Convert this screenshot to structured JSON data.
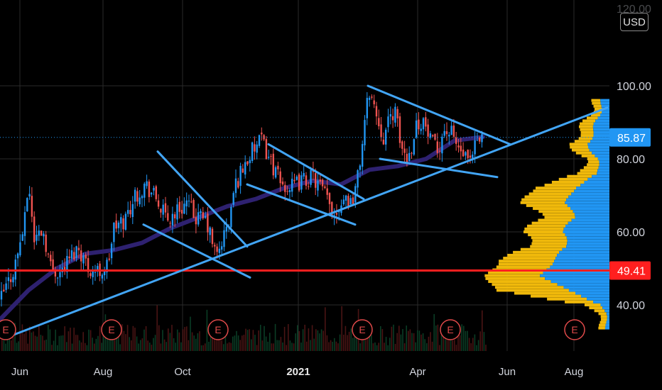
{
  "chart_data": {
    "type": "candlestick",
    "currency_label": "USD",
    "y_axis": {
      "ticks": [
        40,
        60,
        80,
        100
      ],
      "top_tick_partial": "120.00",
      "ylim": [
        31,
        122
      ]
    },
    "x_axis": {
      "ticks": [
        {
          "label": "Jun",
          "bold": false
        },
        {
          "label": "Aug",
          "bold": false
        },
        {
          "label": "Oct",
          "bold": false
        },
        {
          "label": "2021",
          "bold": true
        },
        {
          "label": "Apr",
          "bold": false
        },
        {
          "label": "Jun",
          "bold": false
        },
        {
          "label": "Aug",
          "bold": false
        }
      ]
    },
    "price": [
      {
        "x": 0,
        "y": 41
      },
      {
        "x": 20,
        "y": 50
      },
      {
        "x": 35,
        "y": 63
      },
      {
        "x": 40,
        "y": 74
      },
      {
        "x": 48,
        "y": 58
      },
      {
        "x": 60,
        "y": 61
      },
      {
        "x": 72,
        "y": 50
      },
      {
        "x": 85,
        "y": 49
      },
      {
        "x": 95,
        "y": 52
      },
      {
        "x": 110,
        "y": 56
      },
      {
        "x": 125,
        "y": 50
      },
      {
        "x": 140,
        "y": 49
      },
      {
        "x": 152,
        "y": 51
      },
      {
        "x": 160,
        "y": 61
      },
      {
        "x": 175,
        "y": 63
      },
      {
        "x": 190,
        "y": 70
      },
      {
        "x": 205,
        "y": 73
      },
      {
        "x": 220,
        "y": 69
      },
      {
        "x": 235,
        "y": 63
      },
      {
        "x": 250,
        "y": 66
      },
      {
        "x": 262,
        "y": 68
      },
      {
        "x": 275,
        "y": 64
      },
      {
        "x": 290,
        "y": 63
      },
      {
        "x": 305,
        "y": 53
      },
      {
        "x": 315,
        "y": 59
      },
      {
        "x": 322,
        "y": 62
      },
      {
        "x": 330,
        "y": 72
      },
      {
        "x": 340,
        "y": 77
      },
      {
        "x": 355,
        "y": 82
      },
      {
        "x": 368,
        "y": 85
      },
      {
        "x": 380,
        "y": 80
      },
      {
        "x": 395,
        "y": 73
      },
      {
        "x": 410,
        "y": 72
      },
      {
        "x": 425,
        "y": 74
      },
      {
        "x": 440,
        "y": 75
      },
      {
        "x": 455,
        "y": 71
      },
      {
        "x": 470,
        "y": 65
      },
      {
        "x": 485,
        "y": 70
      },
      {
        "x": 495,
        "y": 68
      },
      {
        "x": 505,
        "y": 76
      },
      {
        "x": 512,
        "y": 88
      },
      {
        "x": 520,
        "y": 99
      },
      {
        "x": 530,
        "y": 92
      },
      {
        "x": 540,
        "y": 86
      },
      {
        "x": 555,
        "y": 94
      },
      {
        "x": 565,
        "y": 83
      },
      {
        "x": 575,
        "y": 80
      },
      {
        "x": 585,
        "y": 89
      },
      {
        "x": 595,
        "y": 91
      },
      {
        "x": 605,
        "y": 85
      },
      {
        "x": 615,
        "y": 82
      },
      {
        "x": 625,
        "y": 88
      },
      {
        "x": 635,
        "y": 87
      },
      {
        "x": 645,
        "y": 83
      },
      {
        "x": 655,
        "y": 80
      },
      {
        "x": 662,
        "y": 78
      },
      {
        "x": 670,
        "y": 84
      },
      {
        "x": 680,
        "y": 85.87
      }
    ],
    "moving_average": [
      {
        "x": 0,
        "y": 36
      },
      {
        "x": 40,
        "y": 44
      },
      {
        "x": 80,
        "y": 50
      },
      {
        "x": 120,
        "y": 54
      },
      {
        "x": 160,
        "y": 55
      },
      {
        "x": 200,
        "y": 57
      },
      {
        "x": 240,
        "y": 61
      },
      {
        "x": 280,
        "y": 64
      },
      {
        "x": 320,
        "y": 67
      },
      {
        "x": 360,
        "y": 69
      },
      {
        "x": 400,
        "y": 72
      },
      {
        "x": 440,
        "y": 74
      },
      {
        "x": 480,
        "y": 73
      },
      {
        "x": 520,
        "y": 77
      },
      {
        "x": 560,
        "y": 78
      },
      {
        "x": 600,
        "y": 80
      },
      {
        "x": 640,
        "y": 85
      },
      {
        "x": 680,
        "y": 86
      }
    ],
    "horizontal_line": {
      "value": 49.41,
      "label": "49.41",
      "color": "#ff1f1f"
    },
    "last_price": {
      "value": 85.87,
      "label": "85.87",
      "color": "#2196f3"
    },
    "trendlines": [
      {
        "from": {
          "x": 15,
          "y": 31.5
        },
        "to": {
          "x": 855,
          "y": 94
        }
      },
      {
        "from": {
          "x": 222,
          "y": 82
        },
        "to": {
          "x": 348,
          "y": 56
        }
      },
      {
        "from": {
          "x": 202,
          "y": 62
        },
        "to": {
          "x": 352,
          "y": 47.5
        }
      },
      {
        "from": {
          "x": 378,
          "y": 84
        },
        "to": {
          "x": 512,
          "y": 69
        }
      },
      {
        "from": {
          "x": 348,
          "y": 73
        },
        "to": {
          "x": 500,
          "y": 62
        }
      },
      {
        "from": {
          "x": 518,
          "y": 100
        },
        "to": {
          "x": 718,
          "y": 84
        }
      },
      {
        "from": {
          "x": 535,
          "y": 80
        },
        "to": {
          "x": 700,
          "y": 75
        }
      }
    ],
    "earnings_markers": [
      {
        "x": 8,
        "label": "E"
      },
      {
        "x": 157,
        "label": "E"
      },
      {
        "x": 307,
        "label": "E"
      },
      {
        "x": 510,
        "label": "E"
      },
      {
        "x": 634,
        "label": "E"
      },
      {
        "x": 809,
        "label": "E"
      }
    ],
    "volume_profile": [
      {
        "y": 96,
        "total": 20,
        "up": 10
      },
      {
        "y": 92,
        "total": 30,
        "up": 15
      },
      {
        "y": 88,
        "total": 40,
        "up": 22
      },
      {
        "y": 84,
        "total": 55,
        "up": 30
      },
      {
        "y": 80,
        "total": 35,
        "up": 18
      },
      {
        "y": 76,
        "total": 40,
        "up": 15
      },
      {
        "y": 72,
        "total": 110,
        "up": 50
      },
      {
        "y": 68,
        "total": 120,
        "up": 60
      },
      {
        "y": 64,
        "total": 95,
        "up": 50
      },
      {
        "y": 60,
        "total": 120,
        "up": 65
      },
      {
        "y": 56,
        "total": 110,
        "up": 60
      },
      {
        "y": 52,
        "total": 160,
        "up": 80
      },
      {
        "y": 48,
        "total": 170,
        "up": 95
      },
      {
        "y": 44,
        "total": 165,
        "up": 60
      },
      {
        "y": 40,
        "total": 30,
        "up": 10
      },
      {
        "y": 36,
        "total": 15,
        "up": 5
      }
    ],
    "colors": {
      "up": "#2196f3",
      "down": "#ef5350",
      "trendline": "#42a5f5",
      "moving_average": "#2e2170",
      "profile_up": "#2196f3",
      "profile_down": "#f0b90b",
      "grid": "#2a2a2a",
      "earnings": "#e04a4a"
    }
  }
}
